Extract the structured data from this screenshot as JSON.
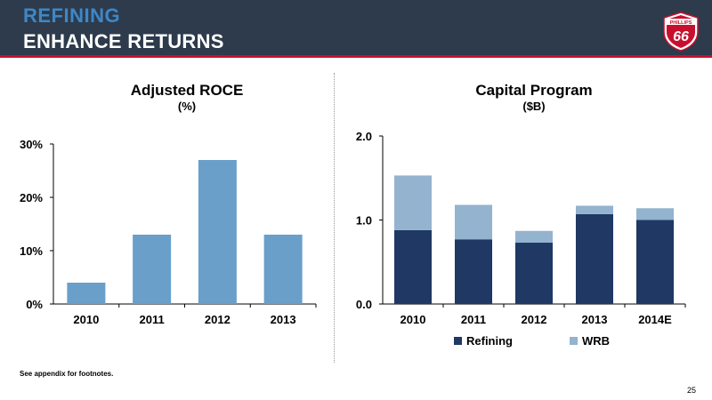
{
  "header": {
    "title": "REFINING",
    "subtitle": "ENHANCE RETURNS",
    "title_color": "#3e87c8",
    "background_color": "#2d3b4c",
    "accent_color": "#c8102e"
  },
  "logo": {
    "text_top": "PHILLIPS",
    "text_main": "66",
    "icon": "phillips-66-shield-logo"
  },
  "footnote": "See appendix for footnotes.",
  "page_number": "25",
  "chart_data": [
    {
      "type": "bar",
      "title": "Adjusted ROCE",
      "subtitle": "(%)",
      "categories": [
        "2010",
        "2011",
        "2012",
        "2013"
      ],
      "values": [
        4,
        13,
        27,
        13
      ],
      "ylim": [
        0,
        30
      ],
      "yticks": [
        "0%",
        "10%",
        "20%",
        "30%"
      ],
      "ytick_values": [
        0,
        10,
        20,
        30
      ],
      "grid": false,
      "color": "#6a9fc9"
    },
    {
      "type": "bar",
      "stacked": true,
      "title": "Capital Program",
      "subtitle": "($B)",
      "categories": [
        "2010",
        "2011",
        "2012",
        "2013",
        "2014E"
      ],
      "series": [
        {
          "name": "Refining",
          "values": [
            0.88,
            0.77,
            0.73,
            1.07,
            1.0
          ],
          "color": "#1f3864"
        },
        {
          "name": "WRB",
          "values": [
            0.65,
            0.41,
            0.14,
            0.1,
            0.14
          ],
          "color": "#93b3cf"
        }
      ],
      "ylim": [
        0,
        2
      ],
      "yticks": [
        "0.0",
        "1.0",
        "2.0"
      ],
      "ytick_values": [
        0,
        1,
        2
      ],
      "grid": false,
      "legend_position": "bottom"
    }
  ]
}
